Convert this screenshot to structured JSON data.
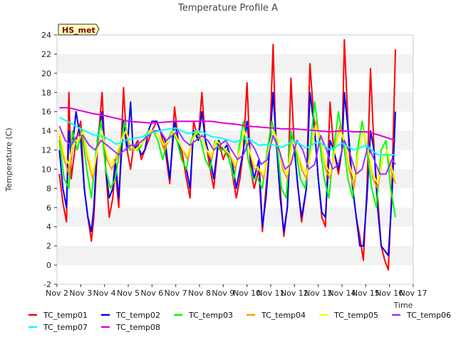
{
  "chart_data": {
    "type": "line",
    "title": "Temperature Profile A",
    "badge": "HS_met",
    "xlabel": "Time",
    "ylabel": "Temperature (C)",
    "ylim": [
      -2,
      24
    ],
    "yticks": [
      -2,
      0,
      2,
      4,
      6,
      8,
      10,
      12,
      14,
      16,
      18,
      20,
      22,
      24
    ],
    "xlim": [
      2,
      17
    ],
    "xticks": [
      2,
      3,
      4,
      5,
      6,
      7,
      8,
      9,
      10,
      11,
      12,
      13,
      14,
      15,
      16,
      17
    ],
    "xtick_labels": [
      "Nov 2",
      "Nov 3",
      "Nov 4",
      "Nov 5",
      "Nov 6",
      "Nov 7",
      "Nov 8",
      "Nov 9",
      "Nov 10",
      "Nov 11",
      "Nov 12",
      "Nov 13",
      "Nov 14",
      "Nov 15",
      "Nov 16",
      "Nov 17"
    ],
    "grid": "horizontal bands",
    "legend_position": "bottom",
    "series": [
      {
        "name": "TC_temp01",
        "color": "#ff0000",
        "x": [
          2.1,
          2.25,
          2.4,
          2.5,
          2.6,
          2.8,
          3.0,
          3.15,
          3.3,
          3.45,
          3.55,
          3.7,
          3.9,
          4.05,
          4.2,
          4.35,
          4.45,
          4.6,
          4.8,
          4.95,
          5.1,
          5.2,
          5.4,
          5.55,
          5.7,
          5.85,
          6.0,
          6.2,
          6.35,
          6.55,
          6.75,
          6.95,
          7.1,
          7.25,
          7.45,
          7.6,
          7.75,
          7.95,
          8.1,
          8.25,
          8.45,
          8.6,
          8.8,
          9.0,
          9.15,
          9.35,
          9.55,
          9.7,
          9.85,
          10.0,
          10.15,
          10.3,
          10.5,
          10.65,
          10.8,
          10.95,
          11.1,
          11.2,
          11.4,
          11.55,
          11.7,
          11.85,
          12.0,
          12.15,
          12.3,
          12.5,
          12.65,
          12.85,
          13.0,
          13.15,
          13.3,
          13.5,
          13.65,
          13.85,
          14.0,
          14.1,
          14.3,
          14.45,
          14.6,
          14.75,
          14.9,
          15.05,
          15.2,
          15.35,
          15.5,
          15.65,
          15.8,
          15.95,
          16.1,
          16.25
        ],
        "y": [
          9.5,
          6.5,
          4.5,
          18,
          9,
          13,
          15,
          8,
          5,
          2.5,
          5,
          12,
          18,
          10,
          5,
          7,
          10,
          6,
          18.5,
          12,
          10,
          12,
          13,
          11,
          12,
          13,
          14,
          15,
          14,
          12,
          8.5,
          16.5,
          13,
          12,
          9,
          7,
          15,
          13,
          18,
          13,
          10,
          8,
          13,
          11,
          12,
          10,
          7,
          9,
          12,
          19,
          10,
          8,
          10,
          3.5,
          8,
          12,
          23,
          14,
          8,
          3,
          6,
          19.5,
          12,
          8,
          4.5,
          8,
          21,
          14,
          9,
          5,
          4,
          17,
          12,
          9.5,
          12,
          23.5,
          12,
          8,
          5,
          3,
          0.5,
          8,
          20.5,
          12,
          7,
          2,
          0.5,
          -0.5,
          8,
          22.5
        ]
      },
      {
        "name": "TC_temp02",
        "color": "#0000ff",
        "x": [
          2.1,
          2.25,
          2.4,
          2.5,
          2.6,
          2.8,
          3.0,
          3.15,
          3.3,
          3.45,
          3.55,
          3.7,
          3.9,
          4.05,
          4.2,
          4.35,
          4.45,
          4.6,
          4.8,
          4.95,
          5.1,
          5.2,
          5.4,
          5.55,
          5.7,
          5.85,
          6.0,
          6.2,
          6.35,
          6.55,
          6.75,
          6.95,
          7.1,
          7.25,
          7.45,
          7.6,
          7.75,
          7.95,
          8.1,
          8.25,
          8.45,
          8.6,
          8.8,
          9.0,
          9.15,
          9.35,
          9.55,
          9.7,
          9.85,
          10.0,
          10.15,
          10.3,
          10.5,
          10.65,
          10.8,
          10.95,
          11.1,
          11.2,
          11.4,
          11.55,
          11.7,
          11.85,
          12.0,
          12.15,
          12.3,
          12.5,
          12.65,
          12.85,
          13.0,
          13.15,
          13.3,
          13.5,
          13.65,
          13.85,
          14.0,
          14.1,
          14.3,
          14.45,
          14.6,
          14.75,
          14.9,
          15.05,
          15.2,
          15.35,
          15.5,
          15.65,
          15.8,
          15.95,
          16.1,
          16.25
        ],
        "y": [
          12,
          8,
          6,
          14,
          11,
          16,
          13,
          8,
          5,
          3.5,
          6,
          13,
          16,
          10,
          7,
          8,
          11,
          7,
          15,
          12,
          17,
          12,
          12.5,
          11.5,
          12,
          14,
          15,
          15,
          14,
          13,
          9,
          15,
          13,
          11,
          10,
          8,
          14,
          13,
          16,
          13,
          11,
          9,
          13,
          12,
          12.5,
          11,
          8,
          10,
          12,
          15,
          11,
          9,
          11,
          4,
          7,
          12,
          18,
          14,
          7,
          3.5,
          6,
          14,
          12,
          8,
          5,
          8,
          18,
          14,
          9,
          5.5,
          5,
          13,
          12,
          10,
          12,
          18,
          13,
          8,
          5,
          2,
          2,
          7,
          14,
          12,
          6,
          2,
          1.5,
          1,
          7,
          16
        ]
      },
      {
        "name": "TC_temp03",
        "color": "#00ff00",
        "x": [
          2.1,
          2.3,
          2.5,
          2.65,
          2.85,
          3.05,
          3.25,
          3.45,
          3.65,
          3.85,
          4.05,
          4.25,
          4.45,
          4.65,
          4.85,
          5.05,
          5.25,
          5.45,
          5.65,
          5.85,
          6.05,
          6.25,
          6.45,
          6.65,
          6.85,
          7.05,
          7.25,
          7.45,
          7.65,
          7.85,
          8.05,
          8.25,
          8.45,
          8.65,
          8.85,
          9.05,
          9.25,
          9.45,
          9.65,
          9.85,
          10.05,
          10.25,
          10.45,
          10.65,
          10.85,
          11.05,
          11.25,
          11.45,
          11.65,
          11.85,
          12.05,
          12.25,
          12.45,
          12.65,
          12.85,
          13.05,
          13.25,
          13.45,
          13.65,
          13.85,
          14.05,
          14.25,
          14.45,
          14.65,
          14.85,
          15.05,
          15.25,
          15.45,
          15.65,
          15.85,
          16.05,
          16.25
        ],
        "y": [
          13,
          9,
          8,
          14,
          12,
          14,
          10,
          7,
          12,
          15,
          10,
          8,
          9,
          12,
          15,
          12,
          12,
          12,
          13,
          14,
          14,
          13,
          11,
          13,
          14,
          13,
          11,
          10,
          13,
          14,
          13,
          11,
          10,
          13,
          12,
          12,
          11,
          9,
          12,
          15,
          11,
          9,
          9,
          8,
          12,
          15,
          13,
          8,
          7,
          14,
          12,
          9,
          8,
          12,
          17,
          13,
          9,
          7,
          12,
          16,
          13,
          9,
          7,
          12,
          15,
          12,
          8,
          6,
          12,
          13,
          8,
          5
        ]
      },
      {
        "name": "TC_temp04",
        "color": "#ff9900",
        "x": [
          2.1,
          2.3,
          2.5,
          2.7,
          2.9,
          3.1,
          3.3,
          3.5,
          3.7,
          3.9,
          4.1,
          4.3,
          4.5,
          4.7,
          4.9,
          5.1,
          5.3,
          5.5,
          5.7,
          5.9,
          6.1,
          6.3,
          6.5,
          6.7,
          6.9,
          7.1,
          7.3,
          7.5,
          7.7,
          7.9,
          8.1,
          8.3,
          8.5,
          8.7,
          8.9,
          9.1,
          9.3,
          9.5,
          9.7,
          9.9,
          10.1,
          10.3,
          10.5,
          10.7,
          10.9,
          11.1,
          11.3,
          11.5,
          11.7,
          11.9,
          12.1,
          12.3,
          12.5,
          12.7,
          12.9,
          13.1,
          13.3,
          13.5,
          13.7,
          13.9,
          14.1,
          14.3,
          14.5,
          14.7,
          14.9,
          15.1,
          15.3,
          15.5,
          15.7,
          15.9,
          16.1,
          16.25
        ],
        "y": [
          13.5,
          11,
          9.5,
          13,
          13,
          14,
          11,
          9,
          12,
          14,
          11,
          10,
          11,
          13,
          14,
          12,
          12,
          12.5,
          13,
          14,
          14,
          13.5,
          12,
          13,
          14,
          13,
          12,
          11,
          13,
          14,
          13.5,
          12,
          11,
          13,
          12.5,
          12,
          11.5,
          10,
          12,
          14,
          12,
          10,
          10,
          9,
          12,
          14,
          13,
          10,
          9,
          13,
          12,
          10,
          9,
          12,
          15,
          13,
          10,
          9,
          12,
          14.5,
          13,
          10,
          8,
          12,
          14,
          12,
          9,
          8,
          11,
          12,
          9.5,
          8.5
        ]
      },
      {
        "name": "TC_temp05",
        "color": "#ffff00",
        "x": [
          2.1,
          2.3,
          2.5,
          2.7,
          2.9,
          3.1,
          3.3,
          3.5,
          3.7,
          3.9,
          4.1,
          4.3,
          4.5,
          4.7,
          4.9,
          5.1,
          5.3,
          5.5,
          5.7,
          5.9,
          6.1,
          6.3,
          6.5,
          6.7,
          6.9,
          7.1,
          7.3,
          7.5,
          7.7,
          7.9,
          8.1,
          8.3,
          8.5,
          8.7,
          8.9,
          9.1,
          9.3,
          9.5,
          9.7,
          9.9,
          10.1,
          10.3,
          10.5,
          10.7,
          10.9,
          11.1,
          11.3,
          11.5,
          11.7,
          11.9,
          12.1,
          12.3,
          12.5,
          12.7,
          12.9,
          13.1,
          13.3,
          13.5,
          13.7,
          13.9,
          14.1,
          14.3,
          14.5,
          14.7,
          14.9,
          15.1,
          15.3,
          15.5,
          15.7,
          15.9,
          16.1,
          16.25
        ],
        "y": [
          14,
          11.5,
          10.5,
          13,
          13,
          14,
          11.5,
          9.5,
          12,
          14,
          11.5,
          10.5,
          11.5,
          13,
          14,
          12.5,
          12,
          12.5,
          13,
          14,
          14,
          13.5,
          12.5,
          13,
          14,
          13,
          12,
          11.5,
          13,
          14,
          13.5,
          12,
          11.5,
          13,
          12.5,
          12,
          11.5,
          10.5,
          12,
          14,
          12,
          10.5,
          10,
          9.5,
          12,
          14,
          13,
          10.5,
          9.5,
          13,
          12,
          10.5,
          9.5,
          12,
          14.5,
          13,
          10.5,
          9.5,
          12,
          14,
          13,
          10.5,
          9,
          12,
          14,
          12,
          9.5,
          8.5,
          11,
          12,
          10,
          9
        ]
      },
      {
        "name": "TC_temp06",
        "color": "#9933ff",
        "x": [
          2.1,
          2.35,
          2.6,
          2.85,
          3.1,
          3.35,
          3.6,
          3.85,
          4.1,
          4.35,
          4.6,
          4.85,
          5.1,
          5.35,
          5.6,
          5.85,
          6.1,
          6.35,
          6.6,
          6.85,
          7.1,
          7.35,
          7.6,
          7.85,
          8.1,
          8.35,
          8.6,
          8.85,
          9.1,
          9.35,
          9.6,
          9.85,
          10.1,
          10.35,
          10.6,
          10.85,
          11.1,
          11.35,
          11.6,
          11.85,
          12.1,
          12.35,
          12.6,
          12.85,
          13.1,
          13.35,
          13.6,
          13.85,
          14.1,
          14.35,
          14.6,
          14.85,
          15.1,
          15.35,
          15.6,
          15.85,
          16.1,
          16.25
        ],
        "y": [
          14.5,
          13,
          12.5,
          13.5,
          13.5,
          12.5,
          12,
          13,
          12.5,
          12,
          11.5,
          12,
          12.5,
          12.5,
          13,
          13.5,
          14,
          14,
          13,
          13.5,
          14,
          13,
          12.5,
          13,
          13.5,
          13,
          12,
          12.5,
          13,
          12,
          11,
          11.5,
          13,
          12,
          10.5,
          11,
          13.5,
          12,
          10,
          10.5,
          13,
          12,
          10,
          10.5,
          13.5,
          12,
          10,
          10.5,
          13,
          11.5,
          9.5,
          10,
          12.5,
          11,
          9.5,
          9.5,
          11,
          10.5
        ]
      },
      {
        "name": "TC_temp07",
        "color": "#00ffff",
        "x": [
          2.1,
          2.5,
          3.0,
          3.5,
          4.0,
          4.5,
          5.0,
          5.5,
          6.0,
          6.5,
          7.0,
          7.5,
          8.0,
          8.5,
          9.0,
          9.5,
          10.0,
          10.5,
          11.0,
          11.5,
          12.0,
          12.5,
          13.0,
          13.5,
          14.0,
          14.5,
          15.0,
          15.5,
          16.0,
          16.25
        ],
        "y": [
          15.4,
          14.9,
          14.2,
          13.6,
          13.4,
          12.6,
          13.1,
          13.3,
          13.8,
          14.1,
          14.3,
          13.7,
          14.0,
          13.4,
          13.2,
          12.8,
          13.3,
          12.5,
          12.6,
          12.3,
          13.0,
          12.2,
          12.9,
          12.0,
          12.7,
          12.0,
          12.5,
          11.5,
          11.5,
          11.5
        ]
      },
      {
        "name": "TC_temp08",
        "color": "#dd00dd",
        "x": [
          2.1,
          2.5,
          3.0,
          3.5,
          4.0,
          4.5,
          5.0,
          5.5,
          6.0,
          6.5,
          7.0,
          7.5,
          8.0,
          8.5,
          9.0,
          9.5,
          10.0,
          10.5,
          11.0,
          11.5,
          12.0,
          12.5,
          13.0,
          13.5,
          14.0,
          14.5,
          15.0,
          15.5,
          16.0,
          16.25
        ],
        "y": [
          16.4,
          16.4,
          16.1,
          15.8,
          15.6,
          15.3,
          15.0,
          14.9,
          14.8,
          14.9,
          15.0,
          15.0,
          15.0,
          15.0,
          14.8,
          14.7,
          14.5,
          14.4,
          14.3,
          14.2,
          14.2,
          14.1,
          14.0,
          13.9,
          14.0,
          13.9,
          13.9,
          13.6,
          13.2,
          13.0
        ]
      }
    ]
  }
}
